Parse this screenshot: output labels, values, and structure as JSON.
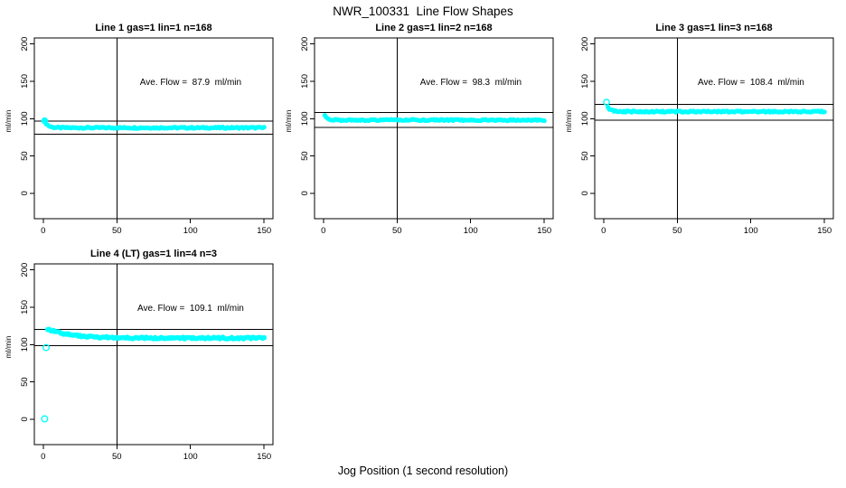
{
  "figure": {
    "title": "NWR_100331  Line Flow Shapes",
    "xlabel": "Jog Position (1 second resolution)",
    "background": "#ffffff",
    "point_color": "#00FFFF",
    "line_color": "#000000"
  },
  "chart_data": [
    {
      "type": "scatter",
      "title": "Line 1 gas=1 lin=1 n=168",
      "ylabel": "ml/min",
      "annotation": "Ave. Flow =  87.9  ml/min",
      "ave_flow_ml_min": 87.9,
      "n": 168,
      "x_ticks": [
        0,
        50,
        100,
        150
      ],
      "y_ticks": [
        0,
        50,
        100,
        150,
        200
      ],
      "xlim": [
        -6,
        156
      ],
      "ylim": [
        -34,
        208
      ],
      "vline_x": 50,
      "hlines": [
        96.7,
        79.1
      ],
      "series": {
        "x_start": 1,
        "x_end": 150,
        "y_start": 97,
        "y_plateau": 87.8,
        "tau": 2.2,
        "noise_amp": 0.9
      },
      "outliers": [
        [
          1,
          97
        ]
      ],
      "point_radius": 2.6,
      "point_style": "circle"
    },
    {
      "type": "scatter",
      "title": "Line 2 gas=1 lin=2 n=168",
      "ylabel": "ml/min",
      "annotation": "Ave. Flow =  98.3  ml/min",
      "ave_flow_ml_min": 98.3,
      "n": 168,
      "x_ticks": [
        0,
        50,
        100,
        150
      ],
      "y_ticks": [
        0,
        50,
        100,
        150,
        200
      ],
      "xlim": [
        -6,
        156
      ],
      "ylim": [
        -34,
        208
      ],
      "vline_x": 50,
      "hlines": [
        108.1,
        88.5
      ],
      "series": {
        "x_start": 1,
        "x_end": 150,
        "y_start": 103.5,
        "y_plateau": 98.1,
        "tau": 2.2,
        "noise_amp": 0.9
      },
      "outliers": [],
      "point_radius": 2.6,
      "point_style": "circle"
    },
    {
      "type": "scatter",
      "title": "Line 3 gas=1 lin=3 n=168",
      "ylabel": "ml/min",
      "annotation": "Ave. Flow =  108.4  ml/min",
      "ave_flow_ml_min": 108.4,
      "n": 168,
      "x_ticks": [
        0,
        50,
        100,
        150
      ],
      "y_ticks": [
        0,
        50,
        100,
        150,
        200
      ],
      "xlim": [
        -6,
        156
      ],
      "ylim": [
        -34,
        208
      ],
      "vline_x": 50,
      "hlines": [
        119.2,
        97.6
      ],
      "series": {
        "x_start": 3,
        "x_end": 150,
        "y_start": 114.5,
        "y_plateau": 109.4,
        "tau": 2.8,
        "noise_amp": 0.9
      },
      "outliers": [
        [
          2,
          122
        ]
      ],
      "point_radius": 2.6,
      "point_style": "circle"
    },
    {
      "type": "scatter",
      "title": "Line 4 (LT) gas=1 lin=4 n=3",
      "ylabel": "ml/min",
      "annotation": "Ave. Flow =  109.1  ml/min",
      "ave_flow_ml_min": 109.1,
      "n": 3,
      "x_ticks": [
        0,
        50,
        100,
        150
      ],
      "y_ticks": [
        0,
        50,
        100,
        150,
        200
      ],
      "xlim": [
        -6,
        156
      ],
      "ylim": [
        -34,
        208
      ],
      "vline_x": 50,
      "hlines": [
        120.0,
        98.2
      ],
      "series": {
        "x_start": 3,
        "x_end": 150,
        "y_start": 121,
        "y_plateau": 108.7,
        "tau": 15,
        "noise_amp": 1.2
      },
      "outliers": [
        [
          1,
          0.5
        ],
        [
          2,
          96
        ]
      ],
      "point_radius": 2.8,
      "point_style": "circle"
    }
  ]
}
